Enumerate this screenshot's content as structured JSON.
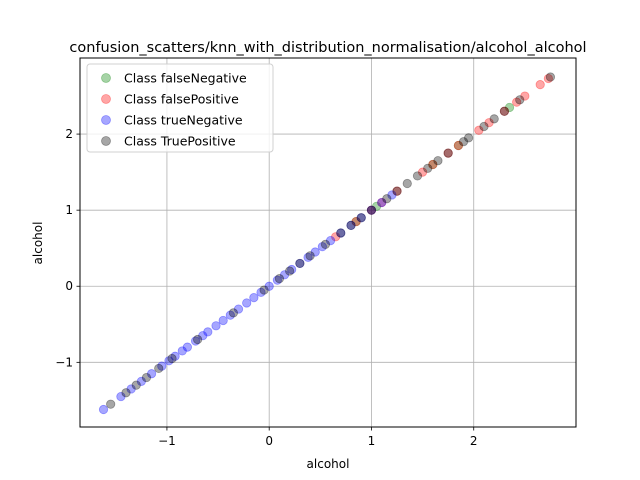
{
  "chart_data": {
    "type": "scatter",
    "title": "confusion_scatters/knn_with_distribution_normalisation/alcohol_alcohol",
    "xlabel": "alcohol",
    "ylabel": "alcohol",
    "xlim": [
      -1.85,
      3.0
    ],
    "ylim": [
      -1.85,
      3.0
    ],
    "xticks": [
      -1,
      0,
      1,
      2
    ],
    "yticks": [
      -1,
      0,
      1,
      2
    ],
    "xtick_labels": [
      "−1",
      "0",
      "1",
      "2"
    ],
    "ytick_labels": [
      "−1",
      "0",
      "1",
      "2"
    ],
    "grid": true,
    "legend_position": "top-left",
    "series": [
      {
        "name": "Class falseNegative",
        "color": "#008000",
        "x": [
          0.85,
          1.05,
          1.6,
          1.85,
          2.35
        ],
        "y": [
          0.85,
          1.05,
          1.6,
          1.85,
          2.35
        ]
      },
      {
        "name": "Class falsePositive",
        "color": "#ff0000",
        "x": [
          0.65,
          0.85,
          1.0,
          1.1,
          1.25,
          1.5,
          1.6,
          1.75,
          1.85,
          2.05,
          2.15,
          2.3,
          2.42,
          2.5,
          2.65,
          2.73
        ],
        "y": [
          0.65,
          0.85,
          1.0,
          1.1,
          1.25,
          1.5,
          1.6,
          1.75,
          1.85,
          2.05,
          2.15,
          2.3,
          2.42,
          2.5,
          2.65,
          2.73
        ]
      },
      {
        "name": "Class trueNegative",
        "color": "#0000ff",
        "x": [
          -1.62,
          -1.45,
          -1.35,
          -1.25,
          -1.15,
          -1.05,
          -0.98,
          -0.92,
          -0.85,
          -0.8,
          -0.72,
          -0.65,
          -0.6,
          -0.52,
          -0.45,
          -0.38,
          -0.3,
          -0.22,
          -0.15,
          -0.08,
          0.0,
          0.08,
          0.15,
          0.22,
          0.3,
          0.38,
          0.45,
          0.52,
          0.6,
          0.7,
          0.8,
          0.9,
          1.0,
          1.1,
          1.2
        ],
        "y": [
          -1.62,
          -1.45,
          -1.35,
          -1.25,
          -1.15,
          -1.05,
          -0.98,
          -0.92,
          -0.85,
          -0.8,
          -0.72,
          -0.65,
          -0.6,
          -0.52,
          -0.45,
          -0.38,
          -0.3,
          -0.22,
          -0.15,
          -0.08,
          0.0,
          0.08,
          0.15,
          0.22,
          0.3,
          0.38,
          0.45,
          0.52,
          0.6,
          0.7,
          0.8,
          0.9,
          1.0,
          1.1,
          1.2
        ]
      },
      {
        "name": "Class TruePositive",
        "color": "#000000",
        "x": [
          -1.55,
          -1.4,
          -1.3,
          -1.2,
          -1.08,
          -0.95,
          -0.7,
          -0.35,
          -0.05,
          0.1,
          0.2,
          0.3,
          0.4,
          0.55,
          0.7,
          0.8,
          0.9,
          1.0,
          1.15,
          1.25,
          1.35,
          1.45,
          1.55,
          1.65,
          1.75,
          1.9,
          1.95,
          2.1,
          2.2,
          2.3,
          2.45,
          2.75
        ],
        "y": [
          -1.55,
          -1.4,
          -1.3,
          -1.2,
          -1.08,
          -0.95,
          -0.7,
          -0.35,
          -0.05,
          0.1,
          0.2,
          0.3,
          0.4,
          0.55,
          0.7,
          0.8,
          0.9,
          1.0,
          1.15,
          1.25,
          1.35,
          1.45,
          1.55,
          1.65,
          1.75,
          1.9,
          1.95,
          2.1,
          2.2,
          2.3,
          2.45,
          2.75
        ]
      }
    ]
  }
}
